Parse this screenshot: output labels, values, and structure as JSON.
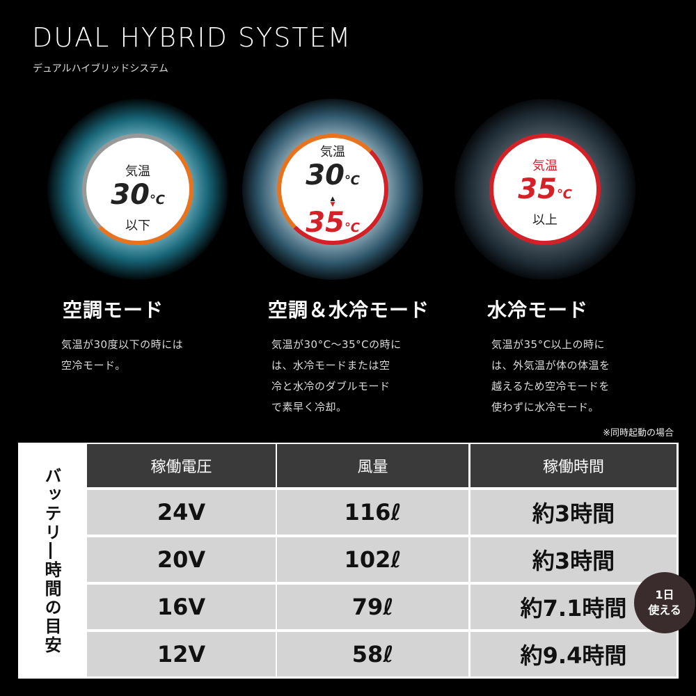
{
  "header": {
    "title": "DUAL HYBRID SYSTEM",
    "subtitle": "デュアルハイブリッドシステム"
  },
  "modes": [
    {
      "badge": {
        "label": "気温",
        "temp": "30",
        "unit": "℃",
        "suffix": "以下"
      },
      "title": "空調モード",
      "description": [
        "気温が30度以下の時には",
        "空冷モード。"
      ]
    },
    {
      "badge": {
        "label": "気温",
        "temp": "30",
        "unit": "℃",
        "temp2": "35",
        "unit2": "℃"
      },
      "title": "空調＆水冷モード",
      "description": [
        "気温が30°C〜35°Cの時に",
        "は、水冷モードまたは空",
        "冷と水冷のダブルモード",
        "で素早く冷却。"
      ]
    },
    {
      "badge": {
        "label": "気温",
        "temp": "35",
        "unit": "℃",
        "suffix": "以上"
      },
      "title": "水冷モード",
      "description": [
        "気温が35°C以上の時に",
        "は、外気温が体の体温を",
        "越えるため空冷モードを",
        "使わずに水冷モード。"
      ]
    }
  ],
  "note": "※同時起動の場合",
  "table": {
    "side_label": "バッテリ―時間の目安",
    "header": [
      "稼働電圧",
      "風量",
      "稼働時間"
    ],
    "rows": [
      [
        "24V",
        "116ℓ",
        "約3時間"
      ],
      [
        "20V",
        "102ℓ",
        "約3時間"
      ],
      [
        "16V",
        "79ℓ",
        "約7.1時間"
      ],
      [
        "12V",
        "58ℓ",
        "約9.4時間"
      ]
    ]
  },
  "day_badge": [
    "1日",
    "使える"
  ]
}
